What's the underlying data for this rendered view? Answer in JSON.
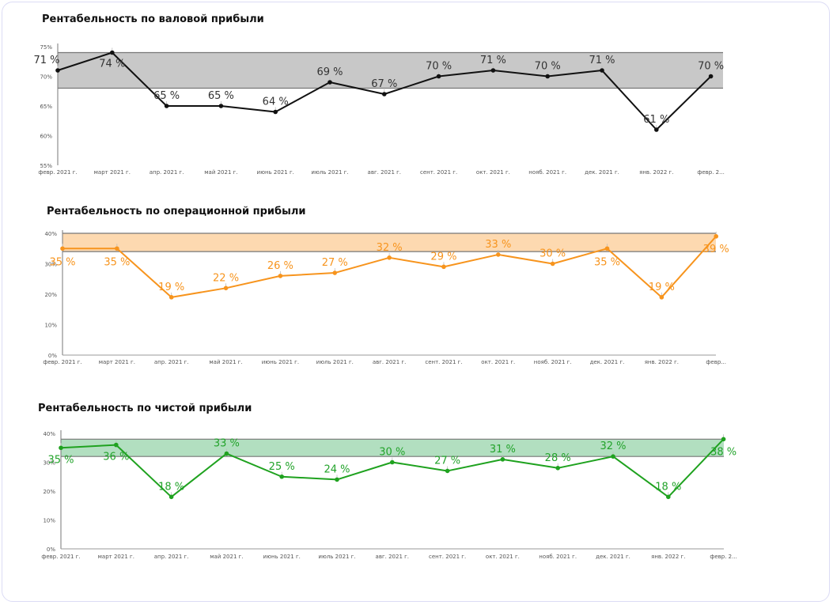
{
  "chart_data": [
    {
      "type": "line",
      "title": "Рентабельность по валовой прибыли",
      "categories": [
        "февр. 2021 г.",
        "март 2021 г.",
        "апр. 2021 г.",
        "май 2021 г.",
        "июнь 2021 г.",
        "июль 2021 г.",
        "авг. 2021 г.",
        "сент. 2021 г.",
        "окт. 2021 г.",
        "нояб. 2021 г.",
        "дек. 2021 г.",
        "янв. 2022 г.",
        "февр. 2..."
      ],
      "values": [
        71,
        74,
        65,
        65,
        64,
        69,
        67,
        70,
        71,
        70,
        71,
        61,
        70
      ],
      "data_labels": [
        "71 %",
        "74 %",
        "65 %",
        "65 %",
        "64 %",
        "69 %",
        "67 %",
        "70 %",
        "71 %",
        "70 %",
        "71 %",
        "61 %",
        "70 %"
      ],
      "yticks": [
        "55%",
        "60%",
        "65%",
        "70%",
        "75%"
      ],
      "ylim": [
        55,
        75
      ],
      "target_band": [
        68,
        74
      ],
      "line_color": "#111111",
      "band_color": "#c8c8c8",
      "label_color": "#333333",
      "xlabel": "",
      "ylabel": "",
      "grid": false
    },
    {
      "type": "line",
      "title": "Рентабельность по операционной прибыли",
      "categories": [
        "февр. 2021 г.",
        "март 2021 г.",
        "апр. 2021 г.",
        "май 2021 г.",
        "июнь 2021 г.",
        "июль 2021 г.",
        "авг. 2021 г.",
        "сент. 2021 г.",
        "окт. 2021 г.",
        "нояб. 2021 г.",
        "дек. 2021 г.",
        "янв. 2022 г.",
        "февр..."
      ],
      "values": [
        35,
        35,
        19,
        22,
        26,
        27,
        32,
        29,
        33,
        30,
        35,
        19,
        39
      ],
      "data_labels": [
        "35 %",
        "35 %",
        "19 %",
        "22 %",
        "26 %",
        "27 %",
        "32 %",
        "29 %",
        "33 %",
        "30 %",
        "35 %",
        "19 %",
        "39 %"
      ],
      "yticks": [
        "0%",
        "10%",
        "20%",
        "30%",
        "40%"
      ],
      "ylim": [
        0,
        40
      ],
      "target_band": [
        34,
        40
      ],
      "line_color": "#f7941d",
      "band_color": "#fdd9b0",
      "label_color": "#f7941d",
      "xlabel": "",
      "ylabel": "",
      "grid": false
    },
    {
      "type": "line",
      "title": "Рентабельность по чистой прибыли",
      "categories": [
        "февр. 2021 г.",
        "март 2021 г.",
        "апр. 2021 г.",
        "май 2021 г.",
        "июнь 2021 г.",
        "июль 2021 г.",
        "авг. 2021 г.",
        "сент. 2021 г.",
        "окт. 2021 г.",
        "нояб. 2021 г.",
        "дек. 2021 г.",
        "янв. 2022 г.",
        "февр. 2..."
      ],
      "values": [
        35,
        36,
        18,
        33,
        25,
        24,
        30,
        27,
        31,
        28,
        32,
        18,
        38
      ],
      "data_labels": [
        "35 %",
        "36 %",
        "18 %",
        "33 %",
        "25 %",
        "24 %",
        "30 %",
        "27 %",
        "31 %",
        "28 %",
        "32 %",
        "18 %",
        "38 %"
      ],
      "yticks": [
        "0%",
        "10%",
        "20%",
        "30%",
        "40%"
      ],
      "ylim": [
        0,
        40
      ],
      "target_band": [
        32,
        38
      ],
      "line_color": "#1fa21f",
      "band_color": "#b2dfc0",
      "label_color": "#22a32a",
      "xlabel": "",
      "ylabel": "",
      "grid": false
    }
  ]
}
